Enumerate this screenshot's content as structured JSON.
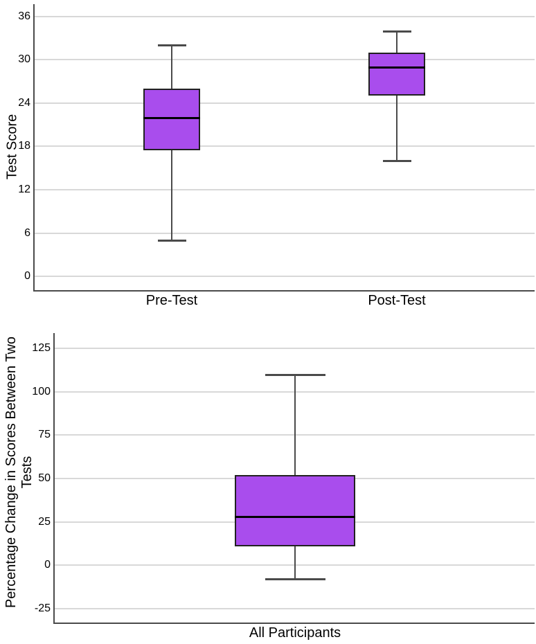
{
  "figure": {
    "background": "#ffffff"
  },
  "style": {
    "box_fill": "#a94ded",
    "box_border": "#212121",
    "median_color": "#000000",
    "whisker_color": "#4a4a4a",
    "gridline_color": "#d8d8d8",
    "axis_color": "#4a4a4a",
    "text_color": "#000000"
  },
  "chart_data": [
    {
      "type": "box",
      "title": "",
      "xlabel": "",
      "ylabel": "Test Score",
      "categories": [
        "Pre-Test",
        "Post-Test"
      ],
      "series": [
        {
          "name": "Pre-Test",
          "whisker_low": 5,
          "q1": 17.5,
          "median": 22,
          "q3": 26,
          "whisker_high": 32
        },
        {
          "name": "Post-Test",
          "whisker_low": 16,
          "q1": 25,
          "median": 29,
          "q3": 31,
          "whisker_high": 34
        }
      ],
      "yticks": [
        0,
        6,
        12,
        18,
        24,
        30,
        36
      ],
      "ylim": [
        -1.9,
        37.7
      ],
      "grid": "horizontal",
      "legend": "none"
    },
    {
      "type": "box",
      "title": "",
      "xlabel": "",
      "ylabel": "Percentage Change in Scores Between Two\nTests",
      "categories": [
        "All Participants"
      ],
      "series": [
        {
          "name": "All Participants",
          "whisker_low": -8,
          "q1": 11,
          "median": 28,
          "q3": 52,
          "whisker_high": 110
        }
      ],
      "yticks": [
        -25,
        0,
        25,
        50,
        75,
        100,
        125
      ],
      "ylim": [
        -33,
        133.8
      ],
      "grid": "horizontal",
      "legend": "none"
    }
  ]
}
